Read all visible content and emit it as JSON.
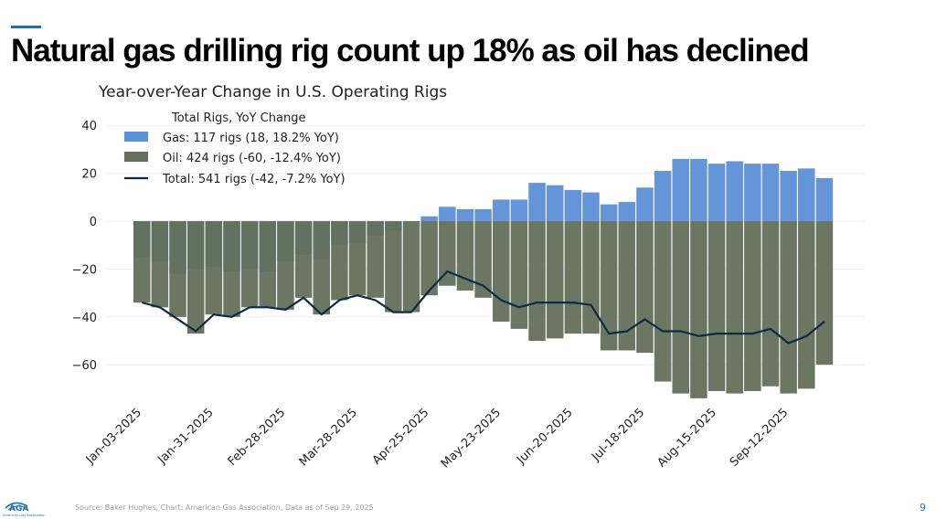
{
  "slide": {
    "title": "Natural gas drilling rig count up 18% as oil has declined",
    "source": "Source: Baker Hughes, Chart: American Gas Association, Data as of Sep 29, 2025",
    "page_number": "9",
    "logo_text": "AGA",
    "logo_subtext": "American Gas Association"
  },
  "colors": {
    "gas": "#5b8fd6",
    "oil": "#636f5b",
    "total": "#0d2b45",
    "accent": "#1f6fb4"
  },
  "chart_data": {
    "type": "bar",
    "subtype": "stacked-bar-with-line",
    "title": "Year-over-Year Change in U.S. Operating Rigs",
    "legend": {
      "title": "Total Rigs, YoY Change",
      "placement": "top-left",
      "entries": [
        "Gas: 117 rigs (18, 18.2% YoY)",
        "Oil: 424 rigs (-60, -12.4% YoY)",
        "Total: 541 rigs (-42, -7.2% YoY)"
      ]
    },
    "ylim": [
      -75,
      42
    ],
    "yticks": [
      40,
      20,
      0,
      -20,
      -40,
      -60
    ],
    "ytick_labels": [
      "40",
      "20",
      "0",
      "−20",
      "−40",
      "−60"
    ],
    "xtick_labels": [
      "Jan-03-2025",
      "Jan-31-2025",
      "Feb-28-2025",
      "Mar-28-2025",
      "Apr-25-2025",
      "May-23-2025",
      "Jun-20-2025",
      "Jul-18-2025",
      "Aug-15-2025",
      "Sep-12-2025"
    ],
    "xtick_every": 4,
    "grid": true,
    "series": [
      {
        "name": "Gas",
        "values": [
          -15,
          -17,
          -22,
          -20,
          -19,
          -21,
          -20,
          -21,
          -17,
          -14,
          -16,
          -10,
          -9,
          -6,
          -4,
          0,
          2,
          6,
          5,
          5,
          9,
          9,
          16,
          15,
          13,
          12,
          7,
          8,
          14,
          21,
          26,
          26,
          24,
          25,
          24,
          24,
          21,
          22,
          18
        ]
      },
      {
        "name": "Oil",
        "values": [
          -34,
          -36,
          -40,
          -47,
          -39,
          -40,
          -36,
          -36,
          -37,
          -32,
          -39,
          -33,
          -31,
          -32,
          -38,
          -38,
          -31,
          -27,
          -29,
          -32,
          -42,
          -45,
          -50,
          -49,
          -47,
          -47,
          -54,
          -54,
          -55,
          -67,
          -72,
          -74,
          -71,
          -72,
          -71,
          -69,
          -72,
          -70,
          -60
        ]
      },
      {
        "name": "Total",
        "values": [
          -34,
          -36,
          -41,
          -46,
          -39,
          -40,
          -36,
          -36,
          -37,
          -32,
          -39,
          -33,
          -31,
          -33,
          -38,
          -38,
          -29,
          -21,
          -24,
          -27,
          -33,
          -36,
          -34,
          -34,
          -34,
          -35,
          -47,
          -46,
          -41,
          -46,
          -46,
          -48,
          -47,
          -47,
          -47,
          -45,
          -51,
          -48,
          -42
        ]
      }
    ]
  }
}
